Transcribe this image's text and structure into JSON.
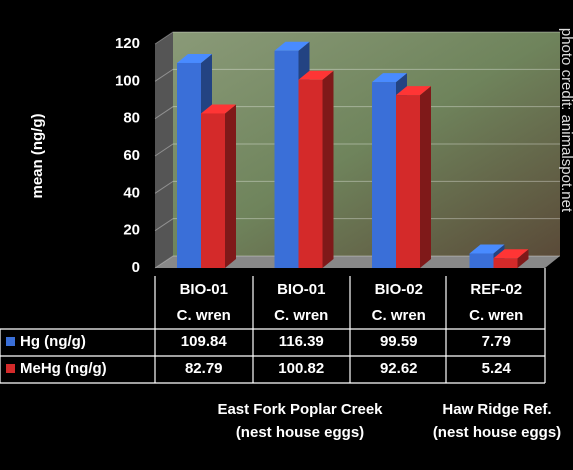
{
  "chart_data": {
    "type": "bar",
    "ylabel": "mean (ng/g)",
    "categories": [
      "BIO-01",
      "BIO-01",
      "BIO-02",
      "REF-02"
    ],
    "category_sublabels": [
      "C. wren",
      "C. wren",
      "C. wren",
      "C. wren"
    ],
    "series": [
      {
        "name": "Hg (ng/g)",
        "color": "#3a6fd8",
        "values": [
          109.84,
          116.39,
          99.59,
          7.79
        ]
      },
      {
        "name": "MeHg (ng/g)",
        "color": "#d42a2a",
        "values": [
          82.79,
          100.82,
          92.62,
          5.24
        ]
      }
    ],
    "groups": [
      {
        "label": "East Fork Poplar Creek",
        "sublabel": "(nest house eggs)"
      },
      {
        "label": "Haw Ridge Ref.",
        "sublabel": "(nest house eggs)"
      }
    ],
    "photo_credit": "photo credit: animalspot.net",
    "ylim": [
      0,
      120
    ],
    "yticks": [
      0,
      20,
      40,
      60,
      80,
      100,
      120
    ],
    "grid": true
  }
}
